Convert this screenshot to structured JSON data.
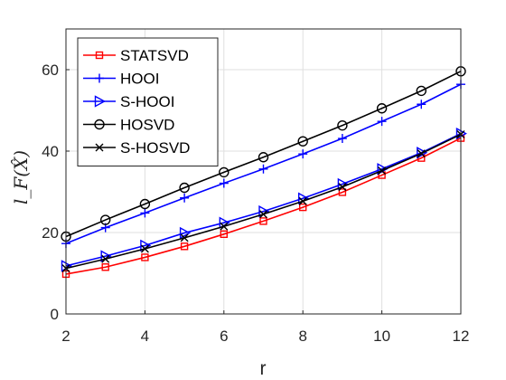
{
  "chart_data": {
    "type": "line",
    "xlabel": "r",
    "ylabel": "l_F(X̂)",
    "xlim": [
      2,
      12
    ],
    "ylim": [
      0,
      70
    ],
    "xticks": [
      2,
      4,
      6,
      8,
      10,
      12
    ],
    "yticks": [
      0,
      20,
      40,
      60
    ],
    "grid": true,
    "legend_position": "top-left",
    "x": [
      2,
      3,
      4,
      5,
      6,
      7,
      8,
      9,
      10,
      11,
      12
    ],
    "series": [
      {
        "name": "STATSVD",
        "color": "#ff0000",
        "marker": "square",
        "values": [
          9.8,
          11.5,
          13.9,
          16.6,
          19.6,
          22.8,
          26.2,
          29.9,
          34.1,
          38.3,
          43.2
        ]
      },
      {
        "name": "HOOI",
        "color": "#0000ff",
        "marker": "plus",
        "values": [
          17.3,
          21.2,
          24.8,
          28.5,
          32.1,
          35.6,
          39.3,
          43.1,
          47.3,
          51.5,
          56.4
        ]
      },
      {
        "name": "S-HOOI",
        "color": "#0000ff",
        "marker": "triangle-right",
        "values": [
          11.8,
          14.2,
          16.8,
          19.9,
          22.4,
          25.2,
          28.4,
          31.9,
          35.6,
          39.6,
          44.3
        ]
      },
      {
        "name": "HOSVD",
        "color": "#000000",
        "marker": "circle",
        "values": [
          19.0,
          23.1,
          27.0,
          31.0,
          34.8,
          38.5,
          42.4,
          46.3,
          50.5,
          54.8,
          59.6
        ]
      },
      {
        "name": "S-HOSVD",
        "color": "#000000",
        "marker": "x",
        "values": [
          11.2,
          13.5,
          16.0,
          18.7,
          21.5,
          24.5,
          27.7,
          31.2,
          35.2,
          39.4,
          44.1
        ]
      }
    ]
  }
}
